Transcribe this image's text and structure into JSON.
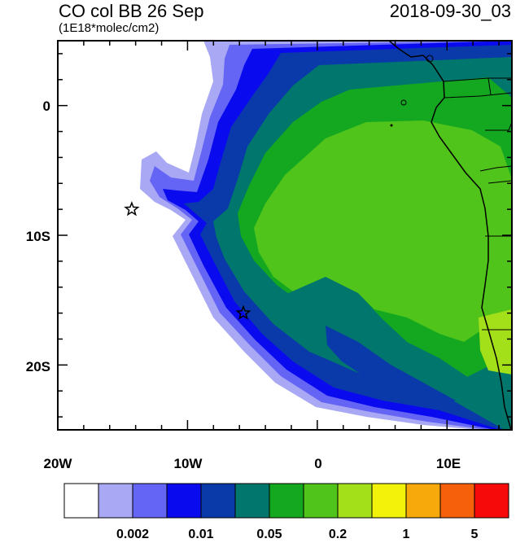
{
  "header": {
    "title": "CO col BB 26 Sep",
    "units": "(1E18*molec/cm2)",
    "datetime": "2018-09-30_03"
  },
  "map": {
    "lon_range": [
      -20,
      15
    ],
    "lat_range": [
      -25,
      5
    ],
    "x_ticks": [
      {
        "label": "20W",
        "lon": -20
      },
      {
        "label": "10W",
        "lon": -10
      },
      {
        "label": "0",
        "lon": 0
      },
      {
        "label": "10E",
        "lon": 10
      }
    ],
    "y_ticks": [
      {
        "label": "0",
        "lat": 0
      },
      {
        "label": "10S",
        "lat": -10
      },
      {
        "label": "20S",
        "lat": -20
      }
    ],
    "markers": [
      {
        "name": "star",
        "lon": -14.3,
        "lat": -8.0
      },
      {
        "name": "star",
        "lon": -5.7,
        "lat": -16.0
      }
    ]
  },
  "colorbar": {
    "colors": [
      "#ffffff",
      "#a8a8f5",
      "#6464f5",
      "#0a0aef",
      "#0a3aaa",
      "#00766c",
      "#14a820",
      "#50c41a",
      "#a4e01a",
      "#f2f20a",
      "#f7a80a",
      "#f7600a",
      "#f70a0a"
    ],
    "labels": [
      {
        "text": "0.002",
        "boundary": 2
      },
      {
        "text": "0.01",
        "boundary": 4
      },
      {
        "text": "0.05",
        "boundary": 6
      },
      {
        "text": "0.2",
        "boundary": 8
      },
      {
        "text": "1",
        "boundary": 10
      },
      {
        "text": "5",
        "boundary": 12
      }
    ]
  }
}
